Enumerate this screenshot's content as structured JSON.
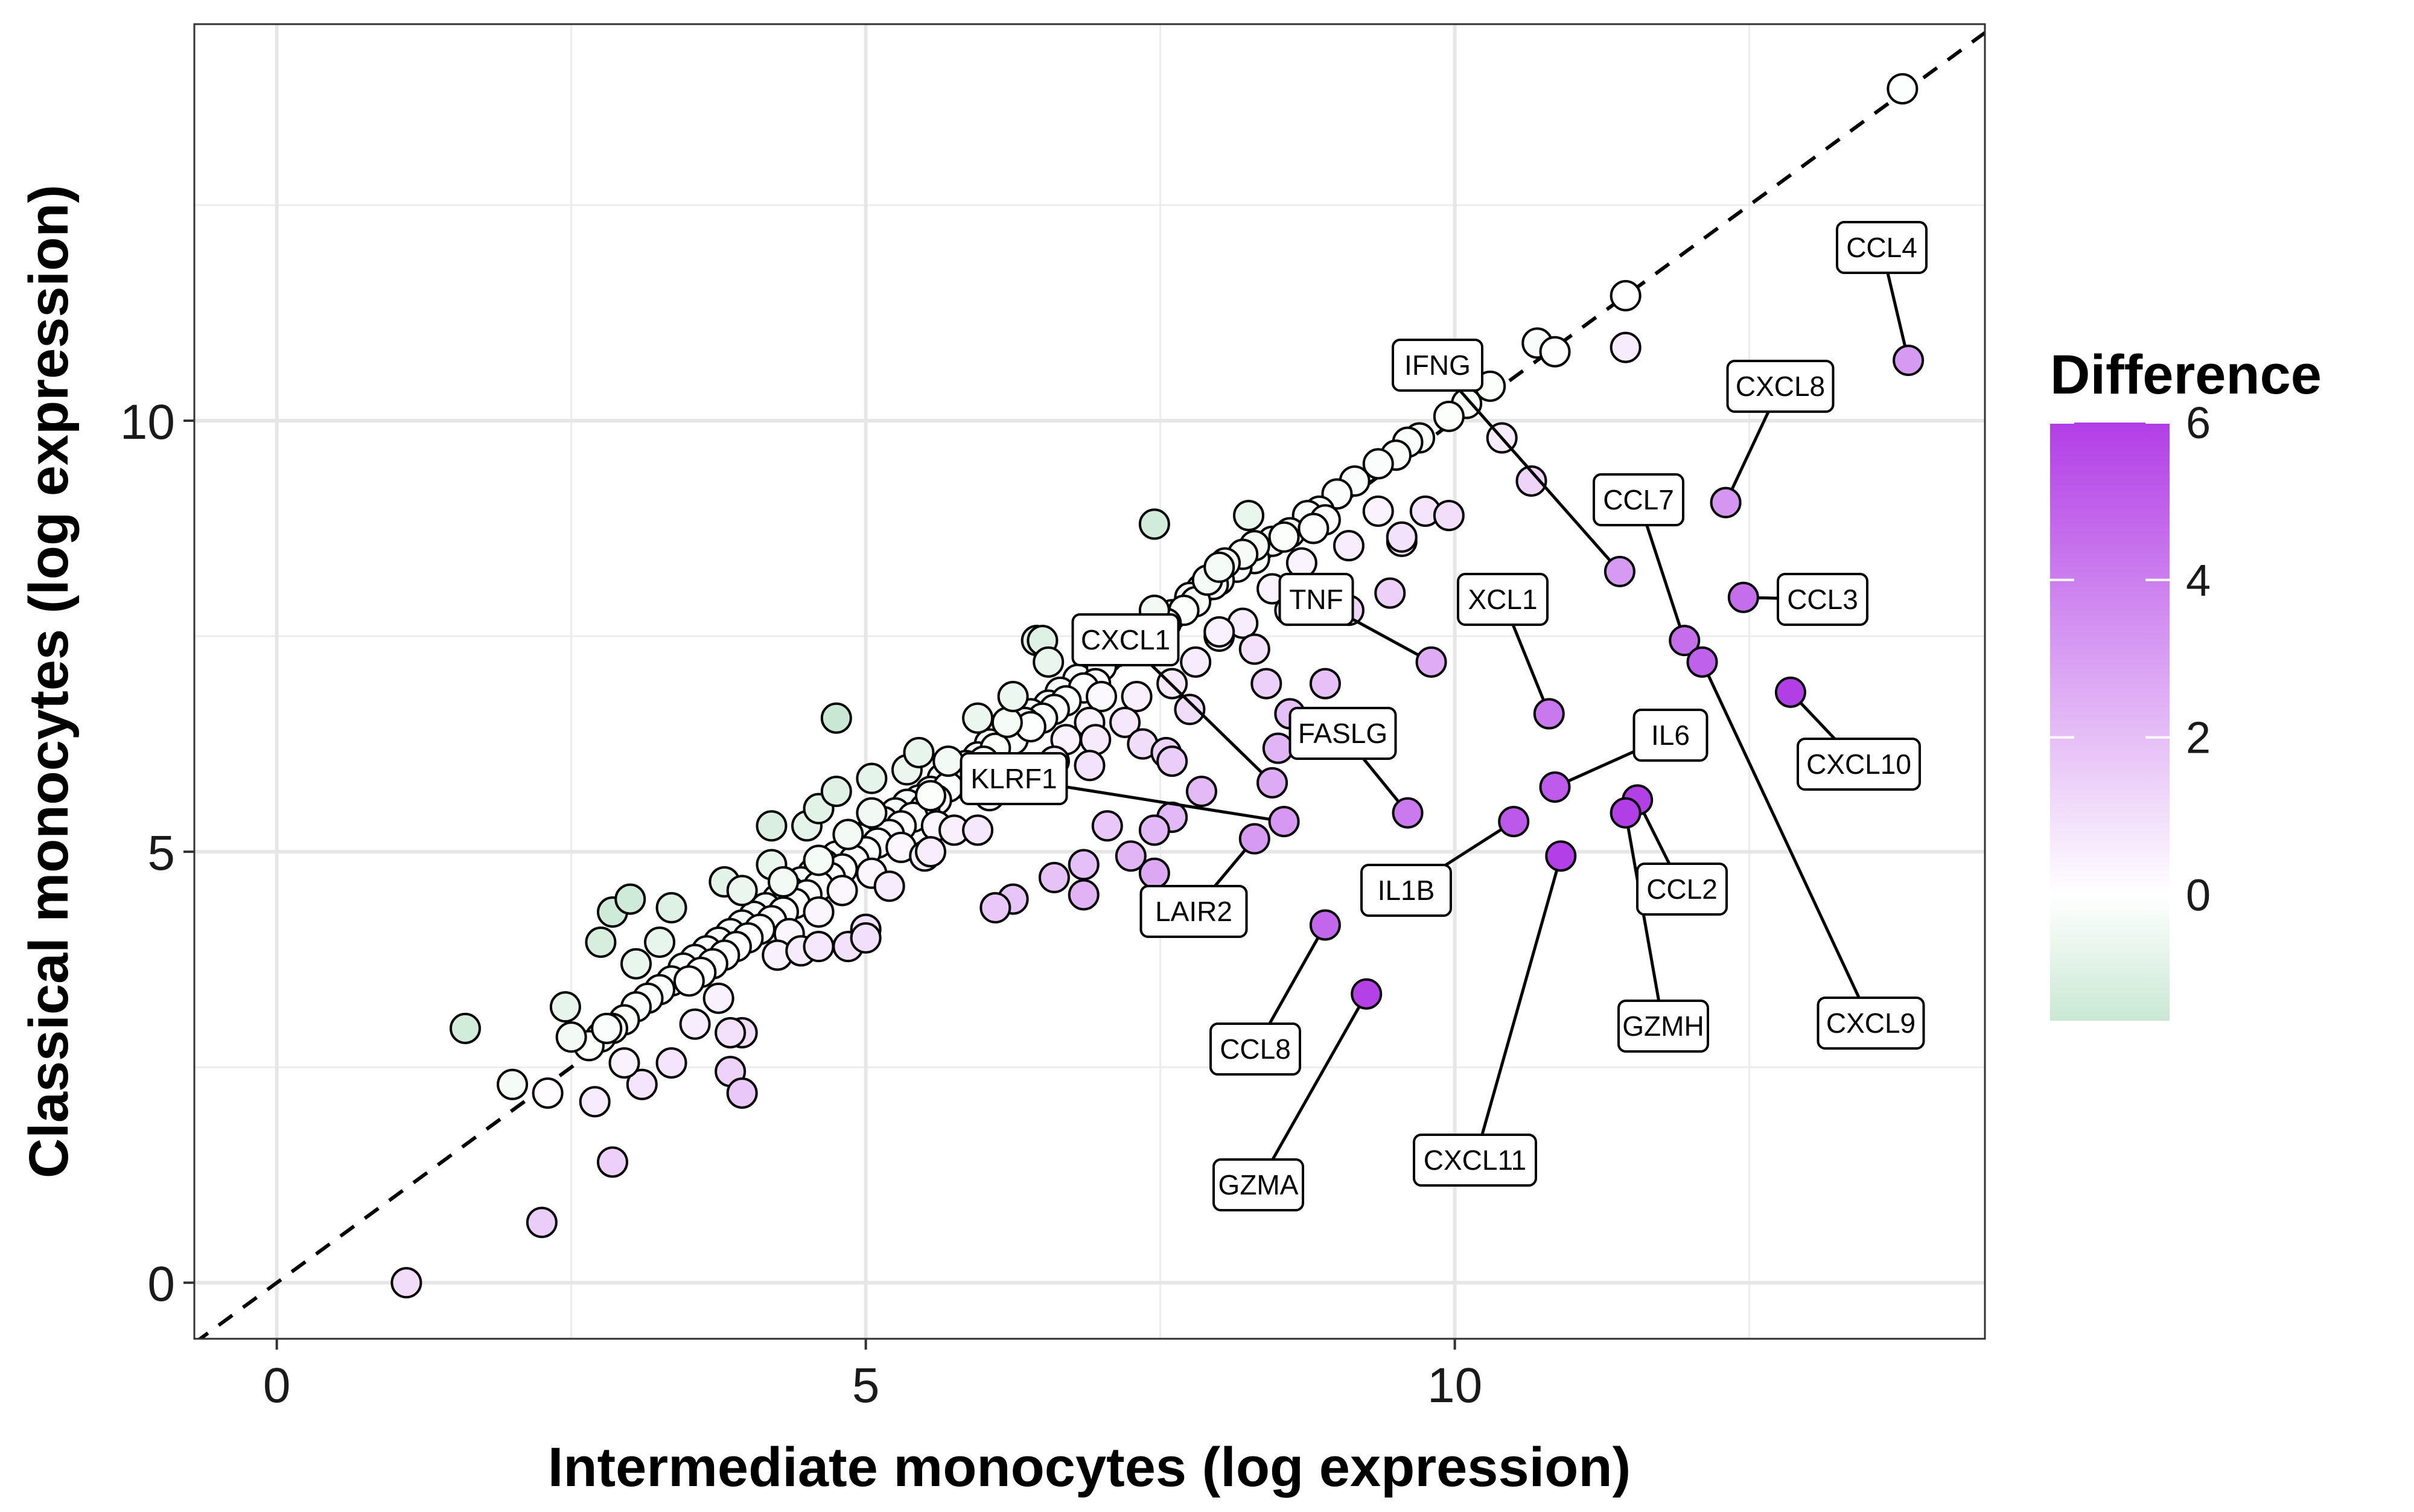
{
  "chart_data": {
    "type": "scatter",
    "xlabel": "Intermediate monocytes (log expression)",
    "ylabel": "Classical monocytes (log expression)",
    "xlim": [
      -0.7,
      14.5
    ],
    "ylim": [
      -0.65,
      14.6
    ],
    "x_ticks": [
      0,
      5,
      10
    ],
    "y_ticks": [
      0,
      5,
      10
    ],
    "grid": true,
    "reference_line": {
      "style": "dashed",
      "slope": 1,
      "intercept": 0
    },
    "legend": {
      "title": "Difference",
      "ticks": [
        6,
        4,
        2,
        0
      ],
      "range": [
        -1.6,
        6.0
      ],
      "colors": {
        "low": "#c9e8d4",
        "mid": "#ffffff",
        "high": "#b23ee6"
      },
      "placement": "right"
    },
    "labeled_points": [
      {
        "gene": "CCL4",
        "x": 13.85,
        "y": 10.7,
        "diff": 3.15
      },
      {
        "gene": "CXCL8",
        "x": 12.3,
        "y": 9.05,
        "diff": 3.25
      },
      {
        "gene": "IFNG",
        "x": 11.4,
        "y": 8.25,
        "diff": 3.15
      },
      {
        "gene": "CCL7",
        "x": 11.95,
        "y": 7.45,
        "diff": 4.5
      },
      {
        "gene": "CCL3",
        "x": 12.45,
        "y": 7.95,
        "diff": 4.5
      },
      {
        "gene": "CXCL10",
        "x": 12.85,
        "y": 6.85,
        "diff": 6.0
      },
      {
        "gene": "TNF",
        "x": 9.8,
        "y": 7.2,
        "diff": 2.6
      },
      {
        "gene": "XCL1",
        "x": 10.8,
        "y": 6.6,
        "diff": 4.2
      },
      {
        "gene": "CXCL1",
        "x": 8.45,
        "y": 5.8,
        "diff": 2.65
      },
      {
        "gene": "FASLG",
        "x": 9.6,
        "y": 5.45,
        "diff": 4.15
      },
      {
        "gene": "IL6",
        "x": 10.85,
        "y": 5.75,
        "diff": 5.1
      },
      {
        "gene": "KLRF1",
        "x": 8.55,
        "y": 5.35,
        "diff": 3.2
      },
      {
        "gene": "LAIR2",
        "x": 8.3,
        "y": 5.15,
        "diff": 3.15
      },
      {
        "gene": "IL1B",
        "x": 10.5,
        "y": 5.35,
        "diff": 5.15
      },
      {
        "gene": "CCL2",
        "x": 11.55,
        "y": 5.6,
        "diff": 5.95
      },
      {
        "gene": "GZMH",
        "x": 11.45,
        "y": 5.45,
        "diff": 6.0
      },
      {
        "gene": "CXCL11",
        "x": 10.9,
        "y": 4.95,
        "diff": 5.95
      },
      {
        "gene": "CXCL9",
        "x": 12.1,
        "y": 7.2,
        "diff": 4.9
      },
      {
        "gene": "CCL8",
        "x": 8.9,
        "y": 4.15,
        "diff": 4.75
      },
      {
        "gene": "GZMA",
        "x": 9.25,
        "y": 3.35,
        "diff": 5.9
      }
    ],
    "points": [
      [
        13.8,
        13.85
      ],
      [
        11.45,
        11.45
      ],
      [
        10.7,
        10.9
      ],
      [
        10.85,
        10.8
      ],
      [
        11.45,
        10.85
      ],
      [
        10.3,
        10.4
      ],
      [
        10.1,
        10.2
      ],
      [
        9.95,
        10.05
      ],
      [
        10.4,
        9.8
      ],
      [
        10.65,
        9.3
      ],
      [
        9.7,
        9.8
      ],
      [
        9.6,
        9.75
      ],
      [
        9.5,
        9.6
      ],
      [
        9.35,
        9.5
      ],
      [
        9.15,
        9.3
      ],
      [
        9.0,
        9.15
      ],
      [
        8.85,
        8.95
      ],
      [
        8.75,
        8.9
      ],
      [
        8.6,
        8.7
      ],
      [
        8.45,
        8.6
      ],
      [
        8.3,
        8.4
      ],
      [
        8.15,
        8.3
      ],
      [
        8.0,
        8.15
      ],
      [
        7.85,
        8.05
      ],
      [
        7.75,
        7.95
      ],
      [
        7.6,
        7.75
      ],
      [
        7.5,
        7.6
      ],
      [
        7.35,
        7.5
      ],
      [
        7.2,
        7.4
      ],
      [
        7.05,
        7.25
      ],
      [
        6.9,
        7.1
      ],
      [
        6.8,
        7.0
      ],
      [
        6.65,
        6.85
      ],
      [
        6.55,
        6.7
      ],
      [
        6.4,
        6.6
      ],
      [
        6.3,
        6.45
      ],
      [
        6.2,
        6.35
      ],
      [
        6.05,
        6.25
      ],
      [
        5.95,
        6.1
      ],
      [
        5.85,
        6.0
      ],
      [
        5.75,
        5.9
      ],
      [
        5.65,
        5.85
      ],
      [
        5.55,
        5.7
      ],
      [
        5.45,
        5.6
      ],
      [
        5.35,
        5.55
      ],
      [
        5.25,
        5.45
      ],
      [
        5.15,
        5.35
      ],
      [
        5.05,
        5.25
      ],
      [
        4.95,
        5.15
      ],
      [
        4.85,
        5.05
      ],
      [
        4.75,
        4.95
      ],
      [
        4.65,
        4.85
      ],
      [
        4.55,
        4.75
      ],
      [
        4.45,
        4.65
      ],
      [
        4.35,
        4.55
      ],
      [
        4.25,
        4.45
      ],
      [
        4.15,
        4.35
      ],
      [
        4.05,
        4.25
      ],
      [
        3.95,
        4.15
      ],
      [
        3.85,
        4.05
      ],
      [
        3.75,
        3.95
      ],
      [
        3.65,
        3.85
      ],
      [
        3.55,
        3.75
      ],
      [
        3.45,
        3.65
      ],
      [
        3.35,
        3.5
      ],
      [
        3.25,
        3.4
      ],
      [
        3.15,
        3.3
      ],
      [
        3.05,
        3.2
      ],
      [
        2.95,
        3.05
      ],
      [
        2.85,
        2.95
      ],
      [
        2.75,
        2.85
      ],
      [
        2.65,
        2.75
      ],
      [
        8.9,
        8.85
      ],
      [
        8.8,
        8.75
      ],
      [
        8.55,
        8.65
      ],
      [
        8.3,
        8.55
      ],
      [
        8.2,
        8.45
      ],
      [
        8.05,
        8.35
      ],
      [
        7.95,
        8.1
      ],
      [
        7.8,
        7.9
      ],
      [
        7.7,
        7.8
      ],
      [
        7.55,
        7.65
      ],
      [
        7.4,
        7.55
      ],
      [
        7.3,
        7.45
      ],
      [
        7.15,
        7.35
      ],
      [
        7.0,
        7.15
      ],
      [
        6.95,
        6.95
      ],
      [
        6.85,
        6.9
      ],
      [
        6.7,
        6.75
      ],
      [
        6.6,
        6.65
      ],
      [
        6.5,
        6.55
      ],
      [
        6.35,
        6.5
      ],
      [
        6.25,
        6.3
      ],
      [
        6.1,
        6.2
      ],
      [
        6.0,
        6.05
      ],
      [
        5.9,
        5.95
      ],
      [
        5.8,
        5.8
      ],
      [
        5.7,
        5.75
      ],
      [
        5.6,
        5.6
      ],
      [
        5.5,
        5.5
      ],
      [
        5.4,
        5.4
      ],
      [
        5.3,
        5.3
      ],
      [
        5.2,
        5.2
      ],
      [
        5.1,
        5.1
      ],
      [
        5.0,
        5.0
      ],
      [
        4.9,
        4.9
      ],
      [
        4.8,
        4.8
      ],
      [
        4.7,
        4.7
      ],
      [
        4.6,
        4.6
      ],
      [
        4.5,
        4.5
      ],
      [
        4.4,
        4.4
      ],
      [
        4.3,
        4.3
      ],
      [
        4.2,
        4.2
      ],
      [
        4.1,
        4.1
      ],
      [
        4.0,
        4.0
      ],
      [
        3.9,
        3.9
      ],
      [
        3.8,
        3.8
      ],
      [
        3.7,
        3.7
      ],
      [
        3.6,
        3.6
      ],
      [
        3.5,
        3.5
      ],
      [
        7.0,
        6.8
      ],
      [
        7.3,
        6.8
      ],
      [
        6.9,
        6.5
      ],
      [
        6.4,
        6.45
      ],
      [
        6.7,
        6.3
      ],
      [
        6.0,
        5.75
      ],
      [
        5.6,
        5.3
      ],
      [
        5.3,
        5.05
      ],
      [
        5.05,
        4.75
      ],
      [
        4.8,
        4.55
      ],
      [
        4.6,
        4.3
      ],
      [
        4.35,
        4.05
      ],
      [
        4.25,
        3.8
      ],
      [
        4.45,
        3.85
      ],
      [
        4.85,
        3.9
      ],
      [
        5.0,
        4.1
      ],
      [
        5.5,
        4.95
      ],
      [
        5.75,
        5.25
      ],
      [
        6.05,
        5.65
      ],
      [
        6.25,
        5.85
      ],
      [
        6.6,
        6.05
      ],
      [
        6.95,
        6.3
      ],
      [
        7.2,
        6.5
      ],
      [
        7.6,
        6.95
      ],
      [
        7.8,
        7.2
      ],
      [
        8.0,
        7.5
      ],
      [
        8.2,
        7.65
      ],
      [
        8.45,
        8.05
      ],
      [
        8.7,
        8.35
      ],
      [
        9.1,
        8.55
      ],
      [
        9.35,
        8.95
      ],
      [
        9.55,
        8.6
      ],
      [
        9.55,
        8.65
      ],
      [
        9.75,
        8.95
      ],
      [
        9.95,
        8.9
      ],
      [
        9.45,
        8.0
      ],
      [
        9.1,
        7.8
      ],
      [
        8.6,
        7.8
      ],
      [
        8.3,
        7.35
      ],
      [
        8.0,
        7.55
      ],
      [
        8.4,
        6.95
      ],
      [
        8.9,
        6.95
      ],
      [
        8.6,
        6.6
      ],
      [
        8.5,
        6.2
      ],
      [
        7.35,
        6.25
      ],
      [
        6.9,
        6.0
      ],
      [
        7.55,
        6.15
      ],
      [
        7.75,
        6.65
      ],
      [
        7.6,
        6.05
      ],
      [
        7.6,
        5.4
      ],
      [
        7.85,
        5.7
      ],
      [
        7.05,
        5.3
      ],
      [
        7.45,
        5.25
      ],
      [
        6.85,
        4.85
      ],
      [
        7.25,
        4.95
      ],
      [
        7.45,
        4.75
      ],
      [
        6.6,
        4.7
      ],
      [
        6.85,
        4.5
      ],
      [
        6.25,
        4.45
      ],
      [
        6.1,
        4.35
      ],
      [
        5.95,
        5.25
      ],
      [
        5.55,
        5.0
      ],
      [
        5.2,
        4.6
      ],
      [
        5.0,
        4.0
      ],
      [
        4.6,
        3.9
      ],
      [
        3.75,
        3.3
      ],
      [
        3.55,
        3.0
      ],
      [
        3.95,
        2.9
      ],
      [
        3.85,
        2.9
      ],
      [
        3.85,
        2.45
      ],
      [
        3.95,
        2.2
      ],
      [
        3.35,
        2.55
      ],
      [
        3.1,
        2.3
      ],
      [
        2.95,
        2.55
      ],
      [
        2.85,
        1.4
      ],
      [
        2.25,
        0.7
      ],
      [
        1.1,
        0.0
      ],
      [
        2.7,
        2.1
      ],
      [
        2.3,
        2.2
      ],
      [
        2.0,
        2.3
      ],
      [
        2.8,
        2.95
      ],
      [
        2.5,
        2.85
      ],
      [
        2.45,
        3.2
      ],
      [
        1.6,
        2.95
      ],
      [
        2.75,
        3.95
      ],
      [
        2.85,
        4.3
      ],
      [
        3.0,
        4.45
      ],
      [
        3.35,
        4.35
      ],
      [
        3.05,
        3.7
      ],
      [
        3.25,
        3.95
      ],
      [
        3.8,
        4.65
      ],
      [
        3.95,
        4.55
      ],
      [
        4.2,
        4.85
      ],
      [
        4.2,
        5.3
      ],
      [
        4.5,
        5.3
      ],
      [
        4.6,
        5.5
      ],
      [
        4.75,
        5.7
      ],
      [
        4.75,
        6.55
      ],
      [
        5.05,
        5.85
      ],
      [
        5.35,
        5.95
      ],
      [
        5.45,
        6.15
      ],
      [
        5.7,
        6.05
      ],
      [
        6.2,
        6.5
      ],
      [
        6.45,
        7.45
      ],
      [
        6.5,
        7.45
      ],
      [
        6.95,
        7.45
      ],
      [
        7.45,
        7.8
      ],
      [
        7.9,
        8.15
      ],
      [
        8.0,
        8.3
      ],
      [
        8.25,
        8.9
      ],
      [
        7.45,
        8.8
      ],
      [
        6.9,
        7.35
      ],
      [
        6.55,
        7.2
      ],
      [
        6.25,
        6.8
      ],
      [
        5.95,
        6.55
      ],
      [
        5.55,
        5.65
      ],
      [
        5.05,
        5.45
      ],
      [
        4.85,
        5.2
      ],
      [
        4.6,
        4.9
      ],
      [
        4.3,
        4.65
      ]
    ]
  }
}
